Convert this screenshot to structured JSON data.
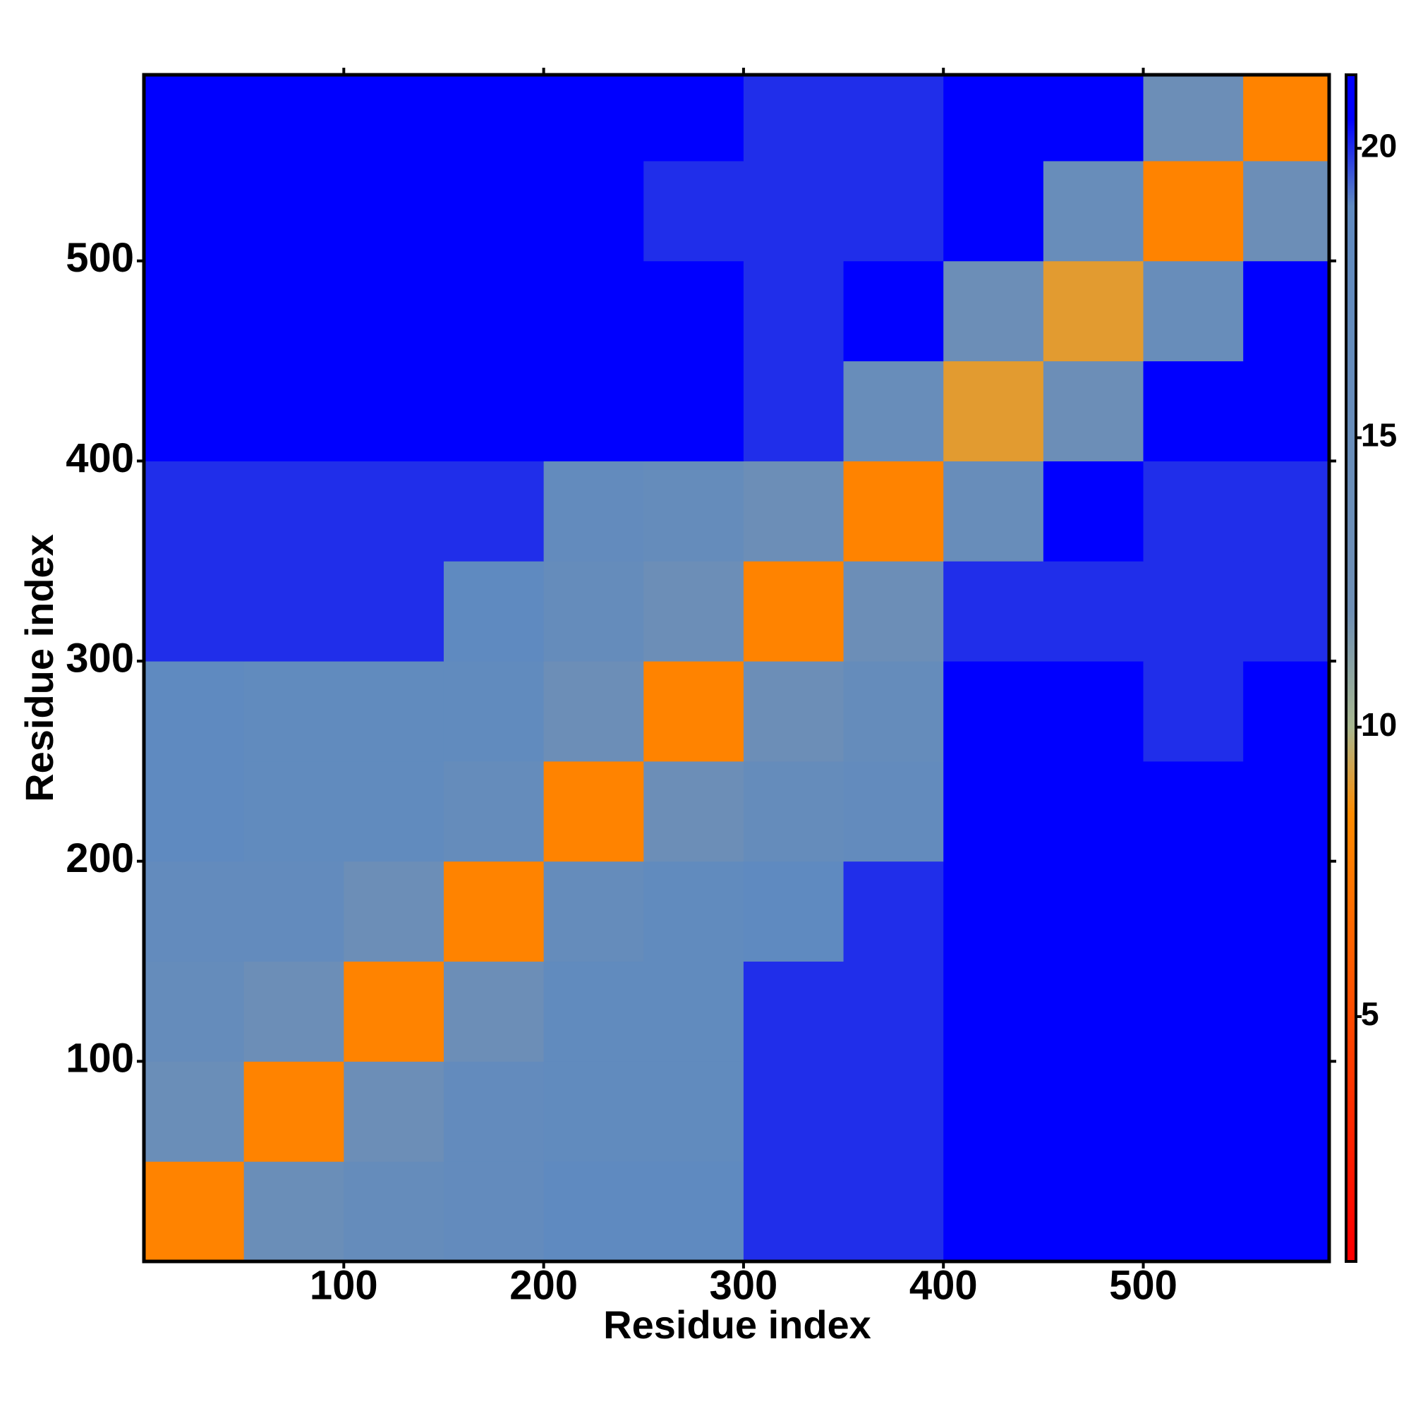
{
  "chart_data": {
    "type": "heatmap",
    "x_label": "Residue index",
    "y_label": "Residue index",
    "x_bins": [
      0,
      50,
      100,
      150,
      200,
      250,
      300,
      350,
      400,
      450,
      500,
      550,
      593
    ],
    "y_bins": [
      0,
      50,
      100,
      150,
      200,
      250,
      300,
      350,
      400,
      450,
      500,
      550,
      593
    ],
    "z": [
      [
        8,
        14,
        16,
        17,
        19,
        19,
        20,
        20,
        21,
        21,
        21,
        21
      ],
      [
        14,
        8,
        13,
        17,
        18,
        18,
        20,
        20,
        21,
        21,
        21,
        21
      ],
      [
        16,
        13,
        8,
        13,
        18,
        18,
        20,
        20,
        21,
        21,
        21,
        21
      ],
      [
        17,
        17,
        13,
        8,
        16,
        18,
        19,
        20,
        21,
        21,
        21,
        21
      ],
      [
        19,
        18,
        18,
        16,
        8,
        13,
        16,
        17,
        21,
        21,
        21,
        21
      ],
      [
        19,
        18,
        18,
        18,
        13,
        8,
        13,
        16,
        21,
        21,
        20,
        21
      ],
      [
        20,
        20,
        20,
        19,
        16,
        13,
        8,
        13,
        20,
        20,
        20,
        20
      ],
      [
        20,
        20,
        20,
        20,
        17,
        16,
        13,
        8,
        15,
        21,
        20,
        20
      ],
      [
        21,
        21,
        21,
        21,
        21,
        21,
        20,
        15,
        9,
        13,
        21,
        21
      ],
      [
        21,
        21,
        21,
        21,
        21,
        21,
        20,
        21,
        13,
        9,
        15,
        21
      ],
      [
        21,
        21,
        21,
        21,
        21,
        20,
        20,
        20,
        21,
        15,
        8,
        13
      ],
      [
        21,
        21,
        21,
        21,
        21,
        21,
        20,
        20,
        21,
        21,
        13,
        8
      ]
    ],
    "xlim": [
      0,
      593
    ],
    "ylim": [
      0,
      593
    ],
    "xticks": [
      100,
      200,
      300,
      400,
      500
    ],
    "yticks": [
      100,
      200,
      300,
      400,
      500
    ],
    "colorbar_lim": [
      0.77,
      21.27
    ],
    "colorbar_ticks": [
      5,
      10,
      15,
      20
    ],
    "colorscale": [
      {
        "value": 1,
        "color": "#ff0000"
      },
      {
        "value": 8.5,
        "color": "#ff8c00"
      },
      {
        "value": 10,
        "color": "#a8b890"
      },
      {
        "value": 12,
        "color": "#6e8fb5"
      },
      {
        "value": 19,
        "color": "#5f8ac0"
      },
      {
        "value": 20.5,
        "color": "#0000ff"
      }
    ]
  }
}
